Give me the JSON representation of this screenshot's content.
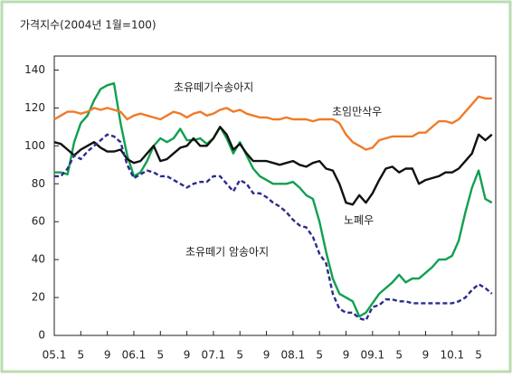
{
  "chart_data": {
    "type": "line",
    "title": "가격지수(2004년 1월=100)",
    "categories": [
      "05.1",
      null,
      null,
      null,
      "5",
      null,
      null,
      null,
      "9",
      null,
      null,
      null,
      "06.1",
      null,
      null,
      null,
      "5",
      null,
      null,
      null,
      "9",
      null,
      null,
      null,
      "07.1",
      null,
      null,
      null,
      "5",
      null,
      null,
      null,
      "9",
      null,
      null,
      null,
      "08.1",
      null,
      null,
      null,
      "5",
      null,
      null,
      null,
      "9",
      null,
      null,
      null,
      "09.1",
      null,
      null,
      null,
      "5",
      null,
      null,
      null,
      "9",
      null,
      null,
      null,
      "10.1",
      null,
      null,
      null,
      "5",
      null,
      null
    ],
    "ylim": [
      0,
      145
    ],
    "yticks": [
      0,
      20,
      40,
      60,
      80,
      100,
      120,
      140
    ],
    "series": [
      {
        "name": "초유떼기수송아지",
        "color": "#10a050",
        "values": [
          86,
          86,
          85,
          102,
          112,
          116,
          124,
          130,
          132,
          133,
          112,
          95,
          84,
          86,
          92,
          100,
          104,
          102,
          104,
          109,
          103,
          103,
          104,
          101,
          104,
          110,
          104,
          96,
          102,
          95,
          88,
          84,
          82,
          80,
          80,
          80,
          81,
          78,
          74,
          72,
          60,
          44,
          30,
          22,
          20,
          18,
          10,
          12,
          17,
          22,
          25,
          28,
          32,
          28,
          30,
          30,
          33,
          36,
          40,
          40,
          42,
          50,
          65,
          78,
          87,
          72,
          70
        ]
      },
      {
        "name": "초임만삭우",
        "color": "#f07a28",
        "values": [
          114,
          116,
          118,
          118,
          117,
          118,
          120,
          119,
          120,
          119,
          118,
          114,
          116,
          117,
          116,
          115,
          114,
          116,
          118,
          117,
          115,
          117,
          118,
          116,
          117,
          119,
          120,
          118,
          119,
          117,
          116,
          115,
          115,
          114,
          114,
          115,
          114,
          114,
          114,
          113,
          114,
          114,
          114,
          112,
          106,
          102,
          100,
          98,
          99,
          103,
          104,
          105,
          105,
          105,
          105,
          107,
          107,
          110,
          113,
          113,
          112,
          114,
          118,
          122,
          126,
          125,
          125
        ]
      },
      {
        "name": "노폐우",
        "color": "#111111",
        "values": [
          102,
          101,
          98,
          95,
          98,
          100,
          102,
          99,
          97,
          97,
          98,
          93,
          91,
          92,
          96,
          100,
          92,
          93,
          96,
          99,
          100,
          104,
          100,
          100,
          104,
          110,
          106,
          98,
          101,
          96,
          92,
          92,
          92,
          91,
          90,
          91,
          92,
          90,
          89,
          91,
          92,
          88,
          87,
          80,
          70,
          69,
          74,
          70,
          75,
          82,
          88,
          89,
          86,
          88,
          88,
          80,
          82,
          83,
          84,
          86,
          86,
          88,
          92,
          96,
          106,
          103,
          106
        ]
      },
      {
        "name": "초유떼기 암송아지",
        "color": "#2b2b8c",
        "dashed": true,
        "values": [
          84,
          84,
          88,
          95,
          93,
          97,
          100,
          103,
          106,
          105,
          102,
          90,
          83,
          85,
          87,
          86,
          84,
          84,
          82,
          80,
          78,
          80,
          81,
          81,
          84,
          84,
          80,
          76,
          82,
          80,
          75,
          75,
          73,
          70,
          68,
          65,
          61,
          58,
          57,
          52,
          43,
          38,
          22,
          14,
          12,
          12,
          9,
          8,
          15,
          16,
          19,
          19,
          18,
          18,
          17,
          17,
          17,
          17,
          17,
          17,
          17,
          18,
          20,
          24,
          27,
          25,
          22
        ]
      }
    ]
  }
}
